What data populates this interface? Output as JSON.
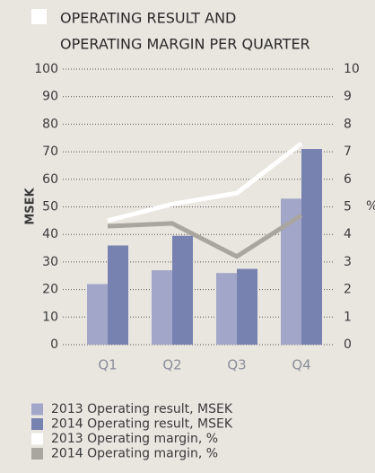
{
  "chart_data": {
    "type": "bar_line",
    "title": [
      "OPERATING RESULT AND",
      "OPERATING MARGIN PER QUARTER"
    ],
    "ylabel": "MSEK",
    "y2label": "%",
    "categories": [
      "Q1",
      "Q2",
      "Q3",
      "Q4"
    ],
    "series": [
      {
        "name": "2013 Operating result, MSEK",
        "color": "#a2a7c9",
        "type": "bar",
        "values": [
          22,
          27,
          26,
          53
        ]
      },
      {
        "name": "2014 Operating result, MSEK",
        "color": "#7882b1",
        "type": "bar",
        "values": [
          36,
          39.5,
          27.5,
          71
        ]
      },
      {
        "name": "2013 Operating margin, %",
        "color": "#ffffff",
        "type": "line",
        "axis": "y2",
        "values": [
          4.5,
          5.1,
          5.5,
          7.3
        ]
      },
      {
        "name": "2014 Operating margin, %",
        "color": "#a9a59f",
        "type": "line",
        "axis": "y2",
        "values": [
          4.3,
          4.4,
          3.2,
          4.7
        ]
      }
    ],
    "ylim": [
      0,
      100
    ],
    "yticks": [
      0,
      10,
      20,
      30,
      40,
      50,
      60,
      70,
      80,
      90,
      100
    ],
    "y2lim": [
      0,
      10
    ],
    "y2ticks": [
      0,
      1,
      2,
      3,
      4,
      5,
      6,
      7,
      8,
      9,
      10
    ],
    "grid": true
  }
}
